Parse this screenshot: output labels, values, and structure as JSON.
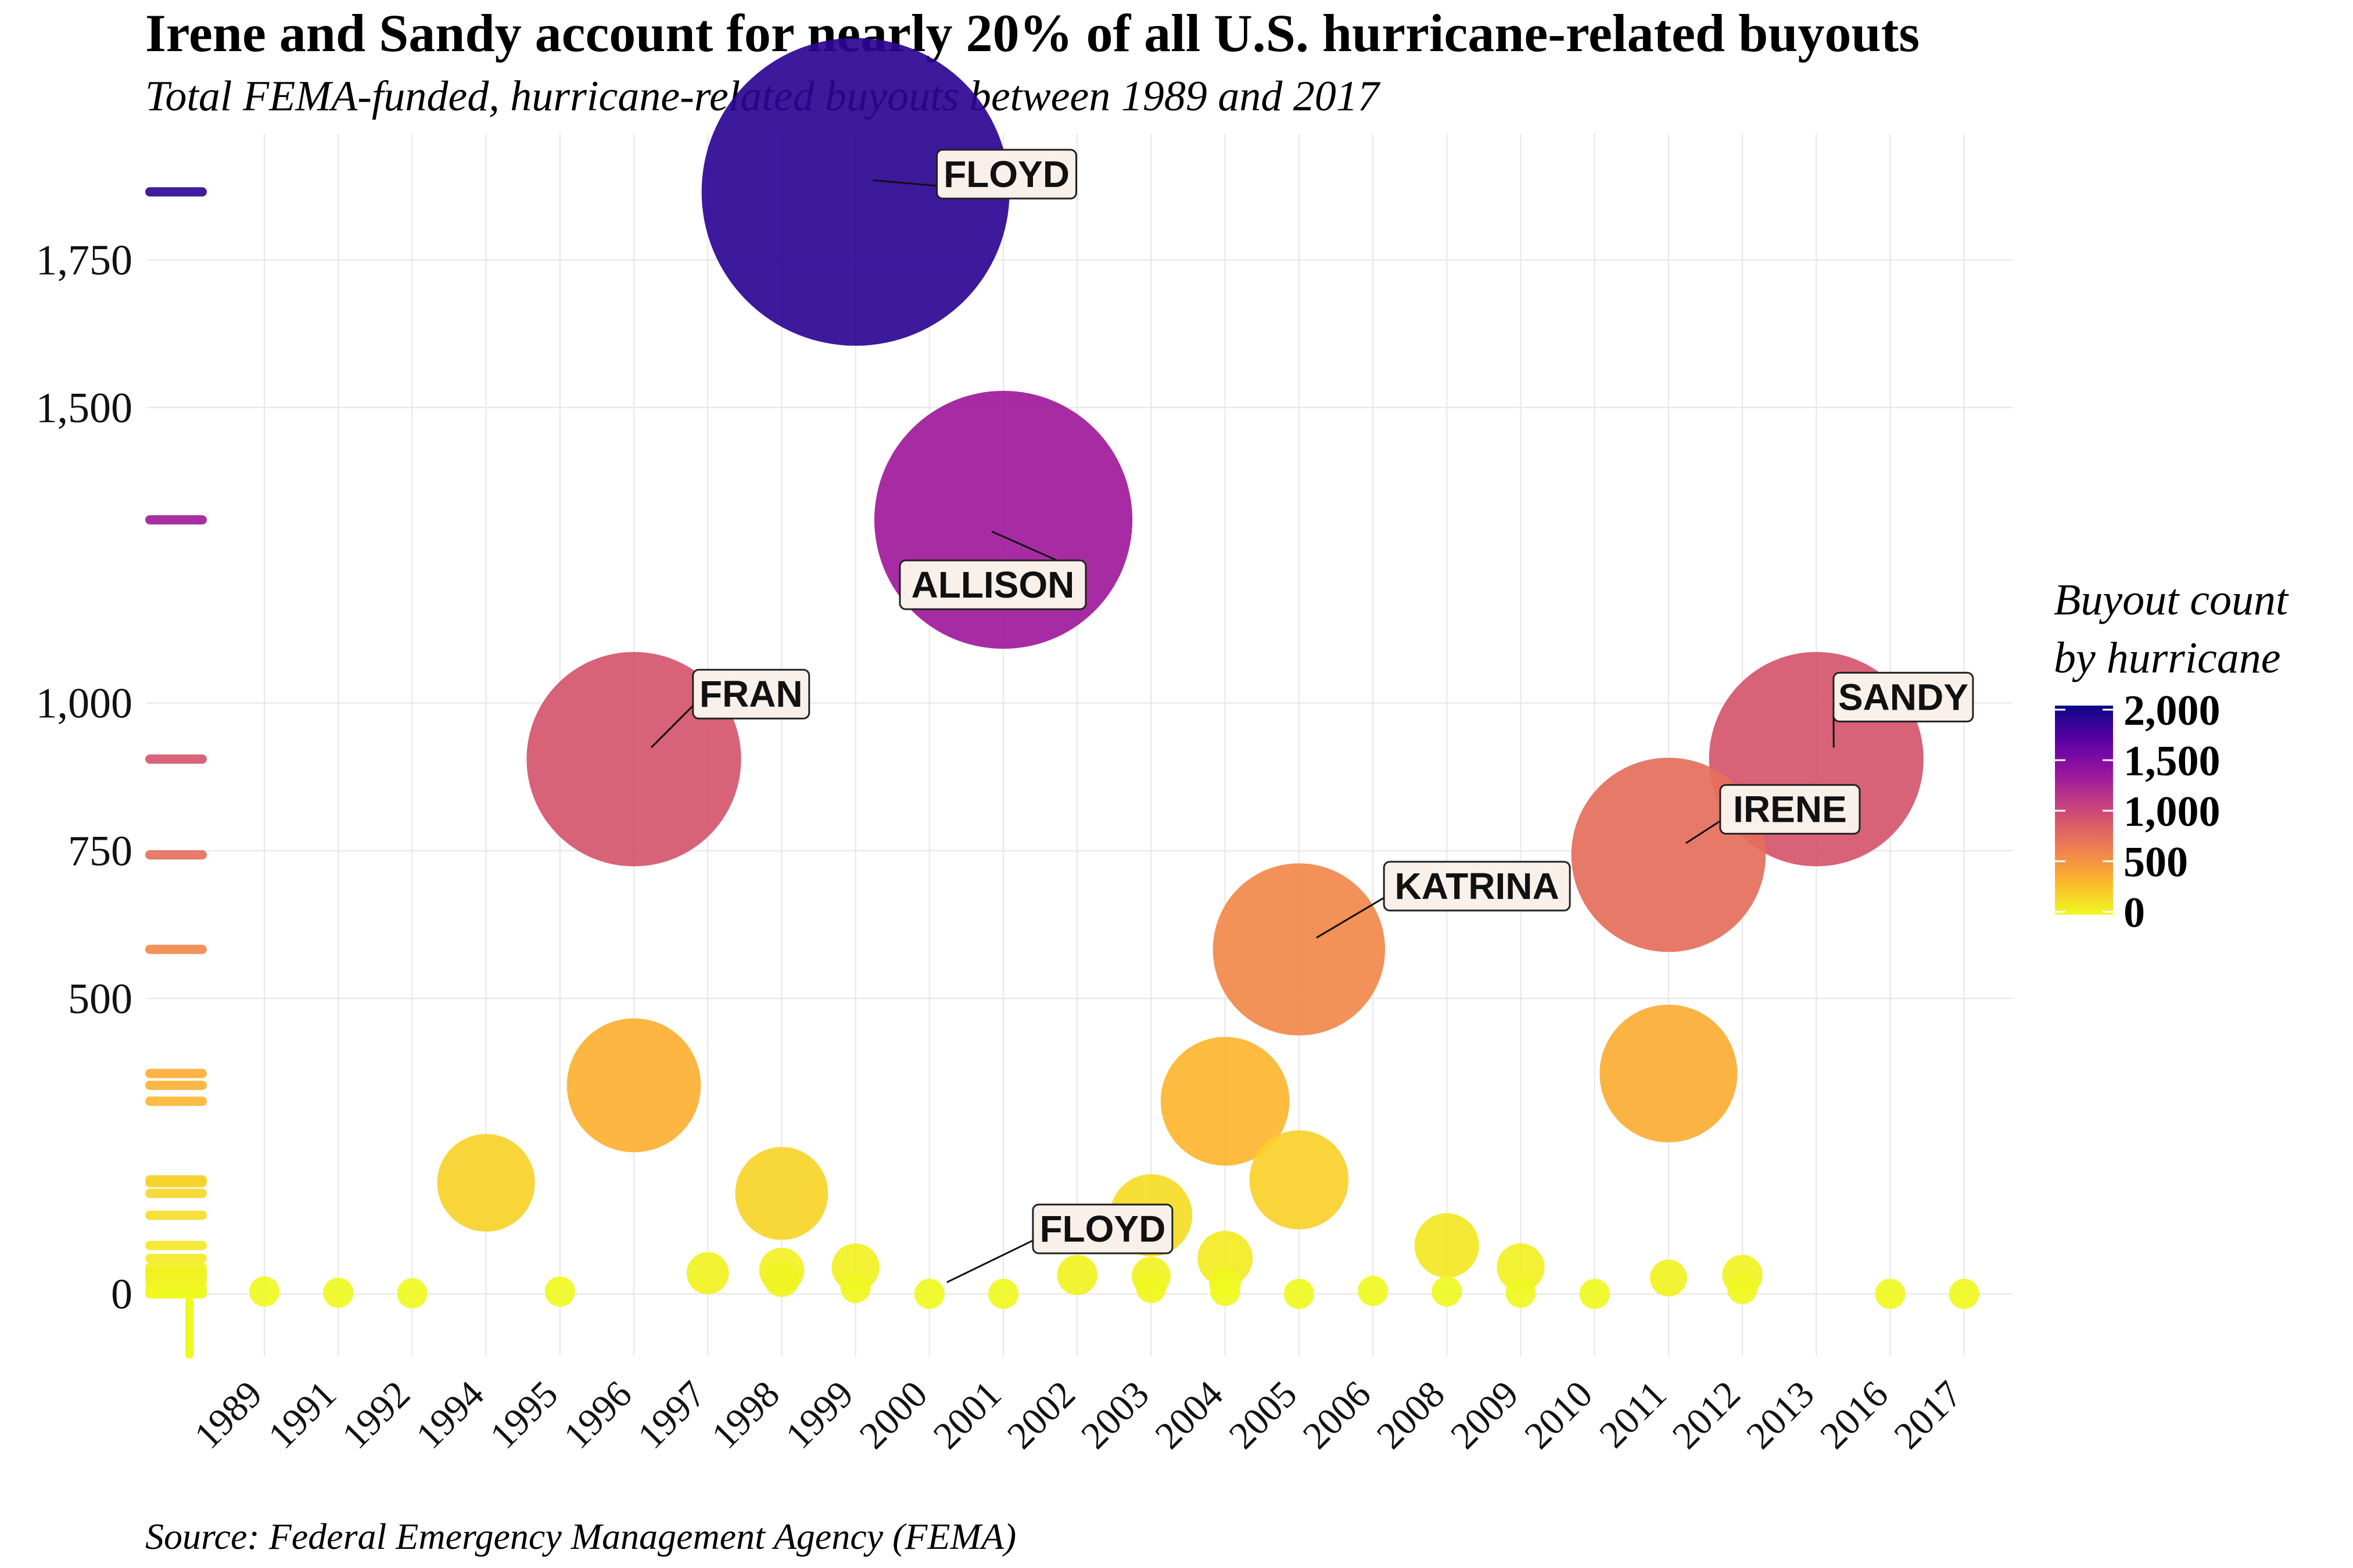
{
  "title": "Irene and Sandy account for nearly 20% of all U.S. hurricane-related buyouts",
  "subtitle": "Total FEMA-funded, hurricane-related buyouts between 1989 and 2017",
  "caption": "Source: Federal Emergency Management Agency (FEMA)",
  "legend": {
    "title_line1": "Buyout count",
    "title_line2": "by hurricane",
    "ticks": [
      "2,000",
      "1,500",
      "1,000",
      "500",
      "0"
    ],
    "tick_values": [
      2000,
      1500,
      1000,
      500,
      0
    ],
    "range": [
      0,
      2000
    ],
    "palette": [
      "#f0f921",
      "#fdb32f",
      "#ed7953",
      "#cb4778",
      "#9c179e",
      "#5c01a6",
      "#0d0887"
    ]
  },
  "chart_data": {
    "type": "scatter",
    "title": "Irene and Sandy account for nearly 20% of all U.S. hurricane-related buyouts",
    "subtitle": "Total FEMA-funded, hurricane-related buyouts between 1989 and 2017",
    "xlabel": "",
    "ylabel": "",
    "x_categories": [
      "1989",
      "1991",
      "1992",
      "1994",
      "1995",
      "1996",
      "1997",
      "1998",
      "1999",
      "2000",
      "2001",
      "2002",
      "2003",
      "2004",
      "2005",
      "2006",
      "2008",
      "2009",
      "2010",
      "2011",
      "2012",
      "2013",
      "2016",
      "2017"
    ],
    "y_ticks": [
      0,
      500,
      750,
      1000,
      1500,
      1750
    ],
    "y_tick_labels": [
      "0",
      "500",
      "750",
      "1,000",
      "1,500",
      "1,750"
    ],
    "ylim": [
      -95,
      1950
    ],
    "grid": true,
    "legend_position": "right",
    "size_and_color_encode": "buyouts",
    "points": [
      {
        "year": "1989",
        "buyouts": 4
      },
      {
        "year": "1991",
        "buyouts": 2
      },
      {
        "year": "1992",
        "buyouts": 1
      },
      {
        "year": "1994",
        "buyouts": 188
      },
      {
        "year": "1995",
        "buyouts": 4
      },
      {
        "year": "1996",
        "buyouts": 353
      },
      {
        "year": "1996",
        "buyouts": 905,
        "label": "FRAN"
      },
      {
        "year": "1997",
        "buyouts": 35
      },
      {
        "year": "1998",
        "buyouts": 170
      },
      {
        "year": "1998",
        "buyouts": 40
      },
      {
        "year": "1998",
        "buyouts": 25
      },
      {
        "year": "1999",
        "buyouts": 1865,
        "label": "FLOYD"
      },
      {
        "year": "1999",
        "buyouts": 45
      },
      {
        "year": "1999",
        "buyouts": 10
      },
      {
        "year": "2000",
        "buyouts": 0,
        "label": "FLOYD"
      },
      {
        "year": "2001",
        "buyouts": 1310,
        "label": "ALLISON"
      },
      {
        "year": "2001",
        "buyouts": 0
      },
      {
        "year": "2002",
        "buyouts": 32
      },
      {
        "year": "2003",
        "buyouts": 133
      },
      {
        "year": "2003",
        "buyouts": 30
      },
      {
        "year": "2003",
        "buyouts": 10
      },
      {
        "year": "2004",
        "buyouts": 326
      },
      {
        "year": "2004",
        "buyouts": 60
      },
      {
        "year": "2004",
        "buyouts": 20
      },
      {
        "year": "2004",
        "buyouts": 5
      },
      {
        "year": "2005",
        "buyouts": 583,
        "label": "KATRINA"
      },
      {
        "year": "2005",
        "buyouts": 193
      },
      {
        "year": "2005",
        "buyouts": 0
      },
      {
        "year": "2006",
        "buyouts": 5
      },
      {
        "year": "2008",
        "buyouts": 82
      },
      {
        "year": "2008",
        "buyouts": 4
      },
      {
        "year": "2009",
        "buyouts": 45
      },
      {
        "year": "2009",
        "buyouts": 2
      },
      {
        "year": "2010",
        "buyouts": 0
      },
      {
        "year": "2011",
        "buyouts": 743,
        "label": "IRENE"
      },
      {
        "year": "2011",
        "buyouts": 373
      },
      {
        "year": "2011",
        "buyouts": 27
      },
      {
        "year": "2012",
        "buyouts": 32
      },
      {
        "year": "2012",
        "buyouts": 8
      },
      {
        "year": "2013",
        "buyouts": 905,
        "label": "SANDY"
      },
      {
        "year": "2016",
        "buyouts": 0
      },
      {
        "year": "2017",
        "buyouts": 0
      }
    ],
    "rug": [
      1865,
      1310,
      905,
      743,
      583,
      373,
      353,
      326,
      193,
      188,
      170,
      133,
      82,
      60,
      45,
      40,
      35,
      32,
      27,
      25,
      20,
      10,
      5,
      4,
      2,
      1,
      0,
      -30,
      -60,
      -85
    ],
    "annotations": [
      {
        "label": "FLOYD",
        "year": "1999",
        "buyouts": 1865,
        "label_year": 2000.1,
        "label_y": 1895
      },
      {
        "label": "ALLISON",
        "year": "2001",
        "buyouts": 1310,
        "label_year": 1999.6,
        "label_y": 1200
      },
      {
        "label": "FRAN",
        "year": "1996",
        "buyouts": 905,
        "label_year": 1996.8,
        "label_y": 1015
      },
      {
        "label": "KATRINA",
        "year": "2005",
        "buyouts": 583,
        "label_year": 2006.3,
        "label_y": 690
      },
      {
        "label": "IRENE",
        "year": "2011",
        "buyouts": 743,
        "label_year": 2011.7,
        "label_y": 820
      },
      {
        "label": "SANDY",
        "year": "2013",
        "buyouts": 905,
        "label_year": 2013.7,
        "label_y": 1010
      },
      {
        "label": "FLOYD",
        "year": "2000",
        "buyouts": 0,
        "label_year": 2001.4,
        "label_y": 110
      }
    ]
  }
}
